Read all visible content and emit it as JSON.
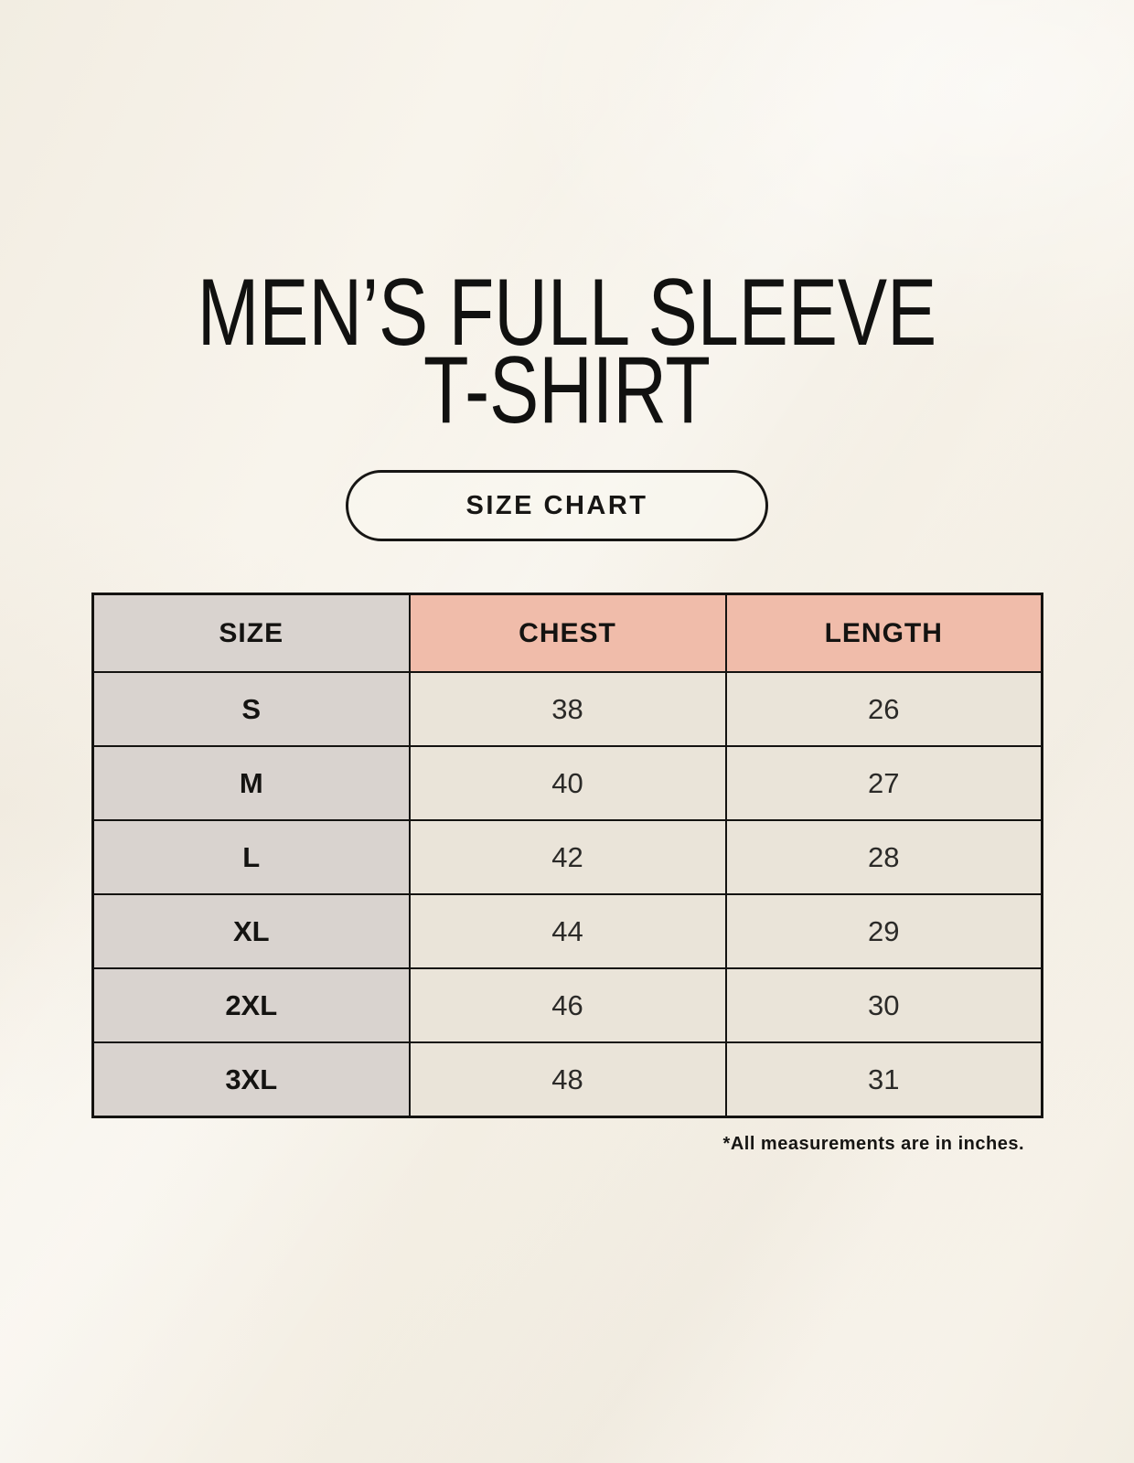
{
  "page": {
    "title_line1": "MEN’S FULL SLEEVE",
    "title_line2": "T-SHIRT",
    "size_chart_button_label": "SIZE CHART",
    "footnote": "*All measurements are in inches."
  },
  "table": {
    "columns": [
      "SIZE",
      "CHEST",
      "LENGTH"
    ],
    "rows": [
      [
        "S",
        "38",
        "26"
      ],
      [
        "M",
        "40",
        "27"
      ],
      [
        "L",
        "42",
        "28"
      ],
      [
        "XL",
        "44",
        "29"
      ],
      [
        "2XL",
        "46",
        "30"
      ],
      [
        "3XL",
        "48",
        "31"
      ]
    ],
    "units_note": "inches"
  },
  "colors": {
    "background": "#f6f2e9",
    "header_accent": "#f0bcaa",
    "size_column_gray": "#d9d3cf",
    "data_cell_beige": "#eae4d9",
    "border_black": "#141311",
    "text_black": "#161513"
  }
}
